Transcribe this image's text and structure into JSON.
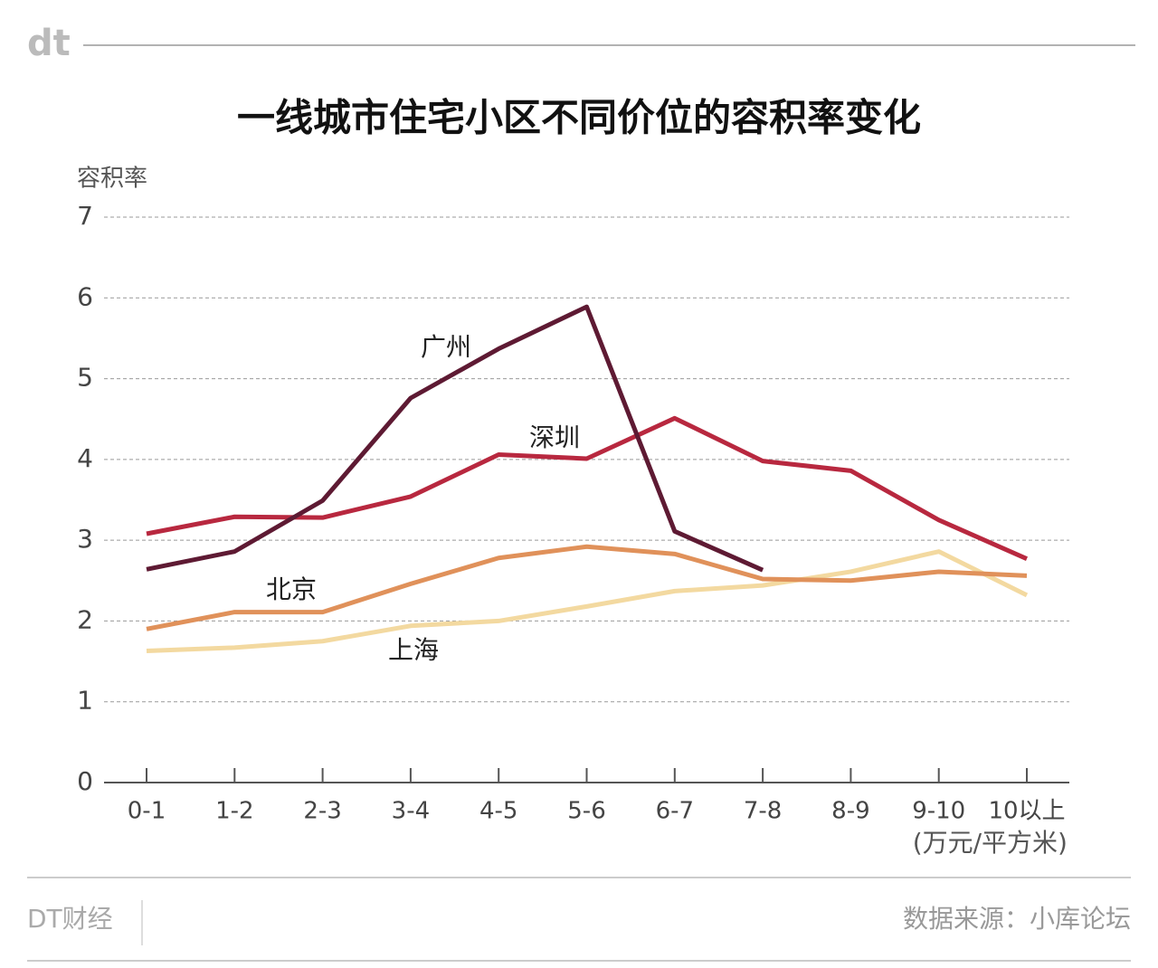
{
  "logo": "dt",
  "chart_data": {
    "type": "line",
    "title": "一线城市住宅小区不同价位的容积率变化",
    "y_label": "容积率",
    "x_unit": "(万元/平方米)",
    "categories": [
      "0-1",
      "1-2",
      "2-3",
      "3-4",
      "4-5",
      "5-6",
      "6-7",
      "7-8",
      "8-9",
      "9-10",
      "10以上"
    ],
    "ylim": [
      0,
      7
    ],
    "yticks": [
      0,
      1,
      2,
      3,
      4,
      5,
      6,
      7
    ],
    "grid": true,
    "series": [
      {
        "name": "广州",
        "color": "#5e1a33",
        "values": [
          2.64,
          2.86,
          3.49,
          4.76,
          5.37,
          5.89,
          3.11,
          2.63,
          null,
          null,
          null
        ]
      },
      {
        "name": "深圳",
        "color": "#b8283f",
        "values": [
          3.08,
          3.29,
          3.28,
          3.54,
          4.06,
          4.01,
          4.51,
          3.98,
          3.86,
          3.25,
          2.77
        ]
      },
      {
        "name": "北京",
        "color": "#e0915a",
        "values": [
          1.9,
          2.11,
          2.11,
          2.46,
          2.78,
          2.92,
          2.83,
          2.52,
          2.5,
          2.61,
          2.56
        ]
      },
      {
        "name": "上海",
        "color": "#f3d9a0",
        "values": [
          1.63,
          1.67,
          1.75,
          1.94,
          2.0,
          2.18,
          2.37,
          2.44,
          2.61,
          2.86,
          2.32
        ]
      }
    ]
  },
  "footer": {
    "brand": "DT财经",
    "source": "数据来源：小库论坛"
  }
}
